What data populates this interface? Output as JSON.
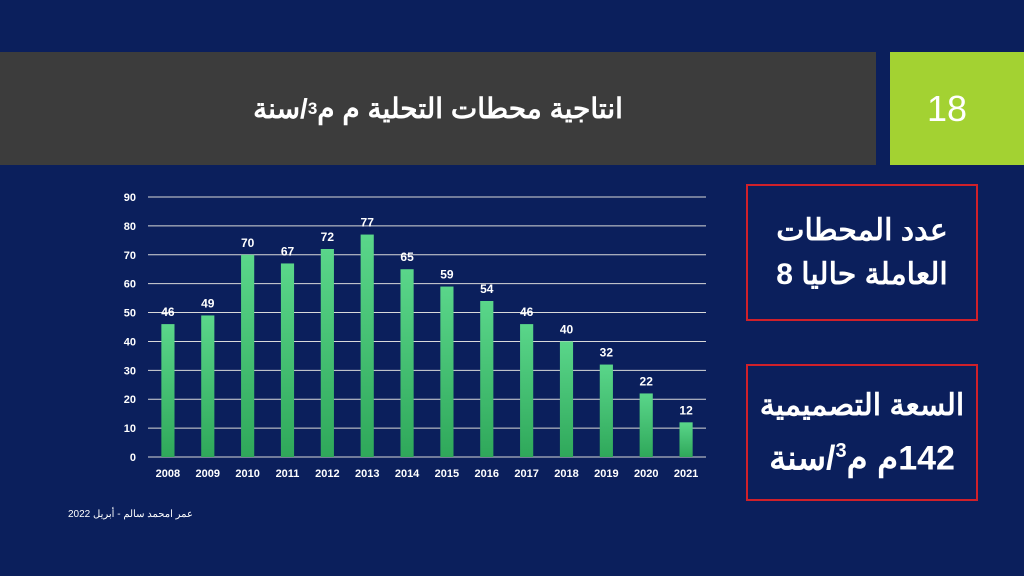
{
  "slide": {
    "title_main": "انتاجية محطات التحلية م م",
    "title_sup": "3",
    "title_suffix": "/سنة",
    "slide_number": "18",
    "footer": "عمر امحمد سالم - أبريل 2022"
  },
  "info_boxes": {
    "stations_line1": "عدد المحطات",
    "stations_line2": "العاملة حاليا 8",
    "capacity_line1": "السعة التصميمية",
    "capacity_value": "142م م",
    "capacity_sup": "3",
    "capacity_suffix": "/سنة"
  },
  "colors": {
    "background": "#0b1f5c",
    "title_bar": "#3c3c3c",
    "accent_green": "#a3d232",
    "bar_top": "#5ad68a",
    "bar_bottom": "#2fa85a",
    "box_border": "#d0202a"
  },
  "chart_data": {
    "type": "bar",
    "categories": [
      "2008",
      "2009",
      "2010",
      "2011",
      "2012",
      "2013",
      "2014",
      "2015",
      "2016",
      "2017",
      "2018",
      "2019",
      "2020",
      "2021"
    ],
    "values": [
      46,
      49,
      70,
      67,
      72,
      77,
      65,
      59,
      54,
      46,
      40,
      32,
      22,
      12
    ],
    "ylim": [
      0,
      90
    ],
    "yticks": [
      0,
      10,
      20,
      30,
      40,
      50,
      60,
      70,
      80,
      90
    ],
    "grid": true,
    "data_labels": true
  }
}
